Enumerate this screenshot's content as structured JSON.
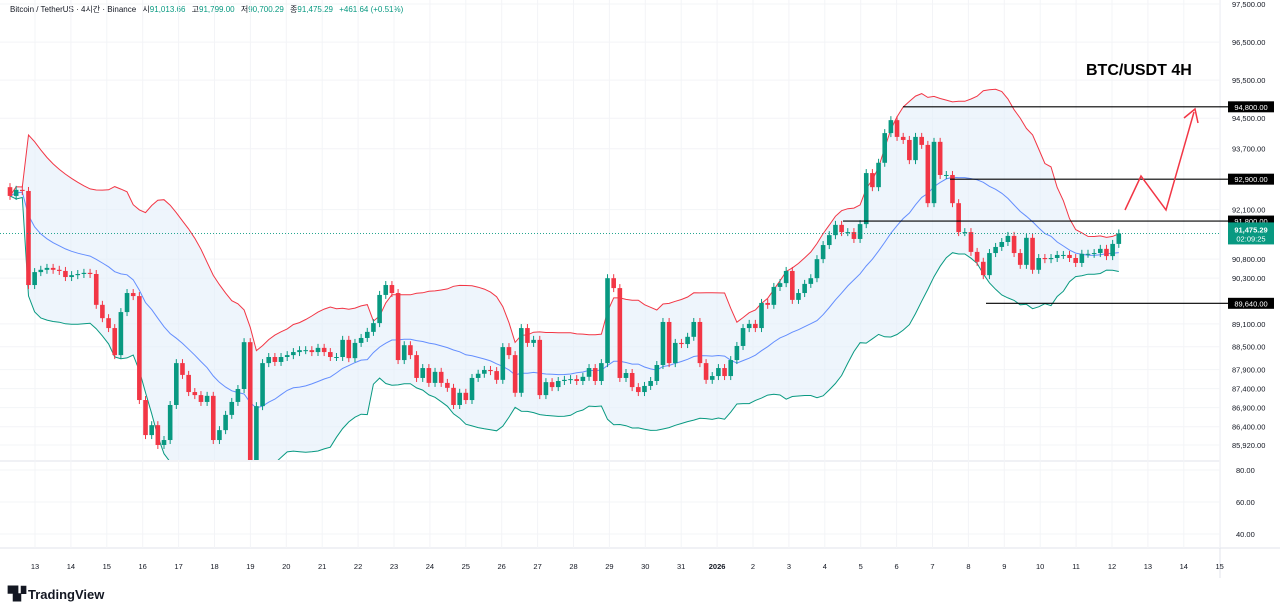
{
  "header": {
    "symbol": "Bitcoin / TetherUS · 4시간 · Binance",
    "open_label": "시",
    "open": "91,013.66",
    "high_label": "고",
    "high": "91,799.00",
    "low_label": "저",
    "low": "90,700.29",
    "close_label": "종",
    "close": "91,475.29",
    "change": "+461.64 (+0.51%)"
  },
  "annotation_title": "BTC/USDT 4H",
  "logo": {
    "text": "TradingView",
    "icon": "tradingview-logo-icon"
  },
  "colors": {
    "up": "#089981",
    "down": "#f23645",
    "upper_band": "#f23645",
    "basis": "#2962ff",
    "lower_band": "#089981",
    "band_fill": "#e3effa",
    "arrow": "#f23645",
    "level_line": "#000000",
    "current_price": "#089981"
  },
  "price_axis": {
    "ticks": [
      "97,500.00",
      "96,500.00",
      "95,500.00",
      "94,500.00",
      "93,700.00",
      "92,100.00",
      "90,800.00",
      "90,300.00",
      "89,100.00",
      "88,500.00",
      "87,900.00",
      "87,400.00",
      "86,900.00",
      "86,400.00",
      "85,920.00"
    ],
    "indicator_ticks": [
      "80.00",
      "60.00",
      "40.00"
    ]
  },
  "levels": [
    {
      "price": 94800,
      "label": "94,800.00"
    },
    {
      "price": 92900,
      "label": "92,900.00"
    },
    {
      "price": 91800,
      "label": "91,800.00"
    },
    {
      "price": 89640,
      "label": "89,640.00"
    }
  ],
  "current_price": {
    "value": 91475.29,
    "label": "91,475.29",
    "countdown": "02:09:25"
  },
  "time_axis": [
    "13",
    "14",
    "15",
    "16",
    "17",
    "18",
    "19",
    "20",
    "21",
    "22",
    "23",
    "24",
    "25",
    "26",
    "27",
    "28",
    "29",
    "30",
    "31",
    "2026",
    "2",
    "3",
    "4",
    "5",
    "6",
    "7",
    "8",
    "9",
    "10",
    "11",
    "12",
    "13",
    "14",
    "15"
  ],
  "chart_data": {
    "type": "candlestick",
    "interval": "4H",
    "indicator": "Bollinger Bands",
    "first_open": 92690,
    "closes": [
      92460,
      92620,
      92590,
      90120,
      90460,
      90520,
      90570,
      90520,
      90490,
      90330,
      90380,
      90410,
      90440,
      90410,
      89600,
      89250,
      88990,
      88280,
      89410,
      89910,
      89830,
      87100,
      86180,
      86440,
      85920,
      86050,
      86970,
      88070,
      87760,
      87310,
      87230,
      87050,
      87210,
      86050,
      86310,
      86710,
      87050,
      87390,
      88620,
      85470,
      86940,
      88070,
      88230,
      88100,
      88230,
      88280,
      88360,
      88410,
      88410,
      88360,
      88470,
      88360,
      88230,
      88230,
      88680,
      88200,
      88600,
      88730,
      88890,
      89120,
      89860,
      90120,
      89910,
      88150,
      88540,
      88280,
      87680,
      87940,
      87550,
      87840,
      87550,
      87420,
      86970,
      87290,
      87100,
      87680,
      87790,
      87890,
      87860,
      87630,
      88490,
      88280,
      87290,
      88990,
      88600,
      88680,
      87230,
      87570,
      87440,
      87600,
      87630,
      87650,
      87600,
      87710,
      87940,
      87600,
      88070,
      90300,
      90040,
      87680,
      87810,
      87440,
      87310,
      87470,
      87600,
      88020,
      89150,
      88070,
      88600,
      88570,
      88760,
      89150,
      88070,
      87630,
      87730,
      87940,
      87730,
      88150,
      88520,
      88990,
      89100,
      88990,
      89650,
      89600,
      90070,
      90170,
      90490,
      89730,
      89910,
      90150,
      90300,
      90800,
      91170,
      91430,
      91700,
      91510,
      91510,
      91330,
      91720,
      93060,
      92690,
      93330,
      94110,
      94450,
      94010,
      93930,
      93400,
      94010,
      93800,
      92270,
      93880,
      93010,
      93010,
      92270,
      91510,
      91510,
      90990,
      90730,
      90380,
      90960,
      91120,
      91250,
      91410,
      90960,
      90650,
      91360,
      90520,
      90830,
      90800,
      90830,
      90910,
      90910,
      90830,
      90700,
      90940,
      90940,
      90960,
      91070,
      90880,
      91200,
      91475
    ]
  }
}
